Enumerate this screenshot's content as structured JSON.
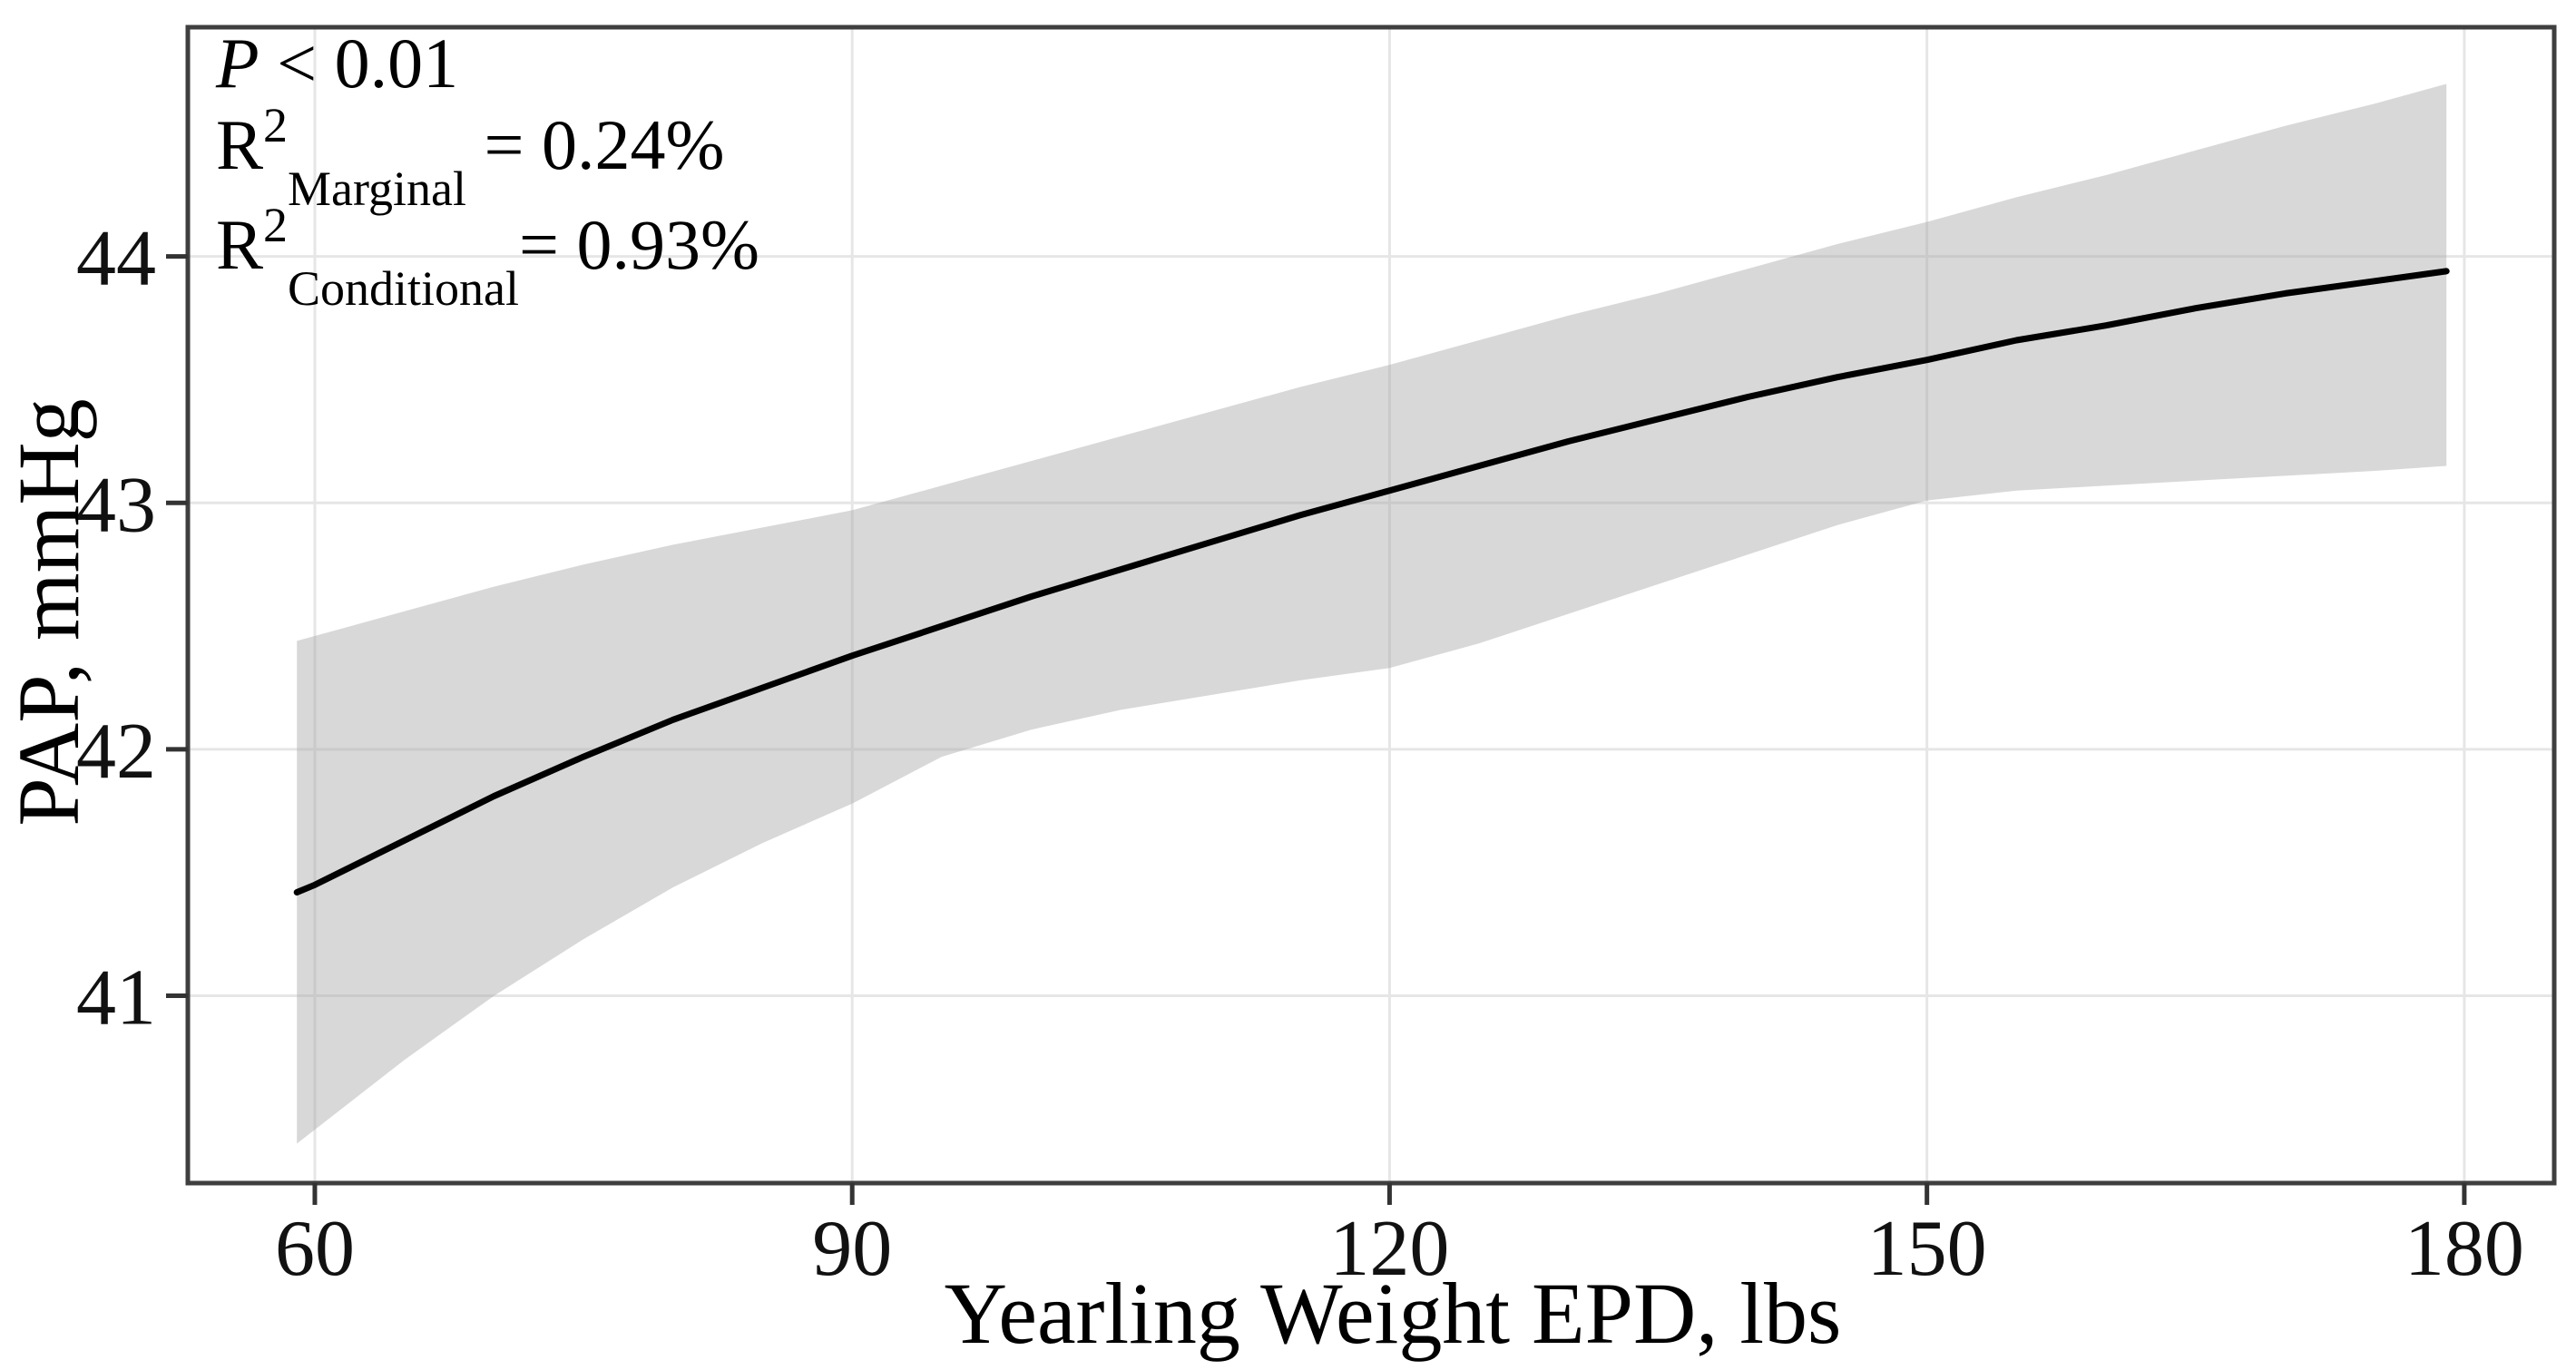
{
  "chart_data": {
    "type": "line",
    "title": "",
    "xlabel": "Yearling Weight EPD, lbs",
    "ylabel": "PAP, mmHg",
    "x_ticks": [
      60,
      90,
      120,
      150,
      180
    ],
    "y_ticks": [
      41,
      42,
      43,
      44
    ],
    "x_range": [
      52.91,
      185.02
    ],
    "y_range": [
      40.24,
      44.93
    ],
    "grid": "major-only",
    "legend": "none",
    "stats": {
      "p_value": "P < 0.01",
      "r2_marginal": "0.24%",
      "r2_conditional": "0.93%"
    },
    "annotations": {
      "lines": [
        {
          "text": "P < 0.01",
          "segments": [
            {
              "t": "P",
              "s": "i"
            },
            {
              "t": " < 0.01",
              "s": "n"
            }
          ]
        },
        {
          "text": "R²Marginal = 0.24%",
          "segments": [
            {
              "t": "R",
              "s": "n"
            },
            {
              "t": "2",
              "s": "sup"
            },
            {
              "t": "Marginal",
              "s": "sub"
            },
            {
              "t": " = 0.24%",
              "s": "n"
            }
          ]
        },
        {
          "text": "R²Conditional = 0.93%",
          "segments": [
            {
              "t": "R",
              "s": "n"
            },
            {
              "t": "2",
              "s": "sup"
            },
            {
              "t": "Conditional",
              "s": "sub"
            },
            {
              "t": "= 0.93%",
              "s": "n"
            }
          ]
        }
      ]
    },
    "series": [
      {
        "name": "fitted-regression-line",
        "kind": "line",
        "color": "#000000",
        "points": [
          [
            59,
            41.42
          ],
          [
            60,
            41.45
          ],
          [
            65,
            41.63
          ],
          [
            70,
            41.81
          ],
          [
            75,
            41.97
          ],
          [
            80,
            42.12
          ],
          [
            85,
            42.25
          ],
          [
            90,
            42.38
          ],
          [
            95,
            42.5
          ],
          [
            100,
            42.62
          ],
          [
            105,
            42.73
          ],
          [
            110,
            42.84
          ],
          [
            115,
            42.95
          ],
          [
            120,
            43.05
          ],
          [
            125,
            43.15
          ],
          [
            130,
            43.25
          ],
          [
            135,
            43.34
          ],
          [
            140,
            43.43
          ],
          [
            145,
            43.51
          ],
          [
            150,
            43.58
          ],
          [
            155,
            43.66
          ],
          [
            160,
            43.72
          ],
          [
            165,
            43.79
          ],
          [
            170,
            43.85
          ],
          [
            175,
            43.9
          ],
          [
            179,
            43.94
          ]
        ]
      },
      {
        "name": "confidence-band",
        "kind": "band",
        "color": "#a9a9a9",
        "opacity": 0.45,
        "upper": [
          [
            59,
            42.44
          ],
          [
            65,
            42.56
          ],
          [
            70,
            42.66
          ],
          [
            75,
            42.75
          ],
          [
            80,
            42.83
          ],
          [
            85,
            42.9
          ],
          [
            90,
            42.97
          ],
          [
            95,
            43.07
          ],
          [
            100,
            43.17
          ],
          [
            105,
            43.27
          ],
          [
            110,
            43.37
          ],
          [
            115,
            43.47
          ],
          [
            120,
            43.56
          ],
          [
            125,
            43.66
          ],
          [
            130,
            43.76
          ],
          [
            135,
            43.85
          ],
          [
            140,
            43.95
          ],
          [
            145,
            44.05
          ],
          [
            150,
            44.14
          ],
          [
            155,
            44.24
          ],
          [
            160,
            44.33
          ],
          [
            165,
            44.43
          ],
          [
            170,
            44.53
          ],
          [
            175,
            44.62
          ],
          [
            179,
            44.7
          ]
        ],
        "lower": [
          [
            59,
            40.4
          ],
          [
            65,
            40.74
          ],
          [
            70,
            41.0
          ],
          [
            75,
            41.23
          ],
          [
            80,
            41.44
          ],
          [
            85,
            41.62
          ],
          [
            90,
            41.78
          ],
          [
            95,
            41.97
          ],
          [
            100,
            42.08
          ],
          [
            105,
            42.16
          ],
          [
            110,
            42.22
          ],
          [
            115,
            42.28
          ],
          [
            120,
            42.33
          ],
          [
            125,
            42.43
          ],
          [
            130,
            42.55
          ],
          [
            135,
            42.67
          ],
          [
            140,
            42.79
          ],
          [
            145,
            42.91
          ],
          [
            150,
            43.01
          ],
          [
            155,
            43.05
          ],
          [
            160,
            43.07
          ],
          [
            165,
            43.09
          ],
          [
            170,
            43.11
          ],
          [
            175,
            43.13
          ],
          [
            179,
            43.15
          ]
        ]
      }
    ],
    "colors": {
      "band": "#a9a9a9",
      "line": "#000000",
      "grid": "#e6e6e6",
      "panel_border": "#3f3f3f",
      "tick_mark": "#333333",
      "text": "#000000",
      "background": "#ffffff"
    }
  }
}
